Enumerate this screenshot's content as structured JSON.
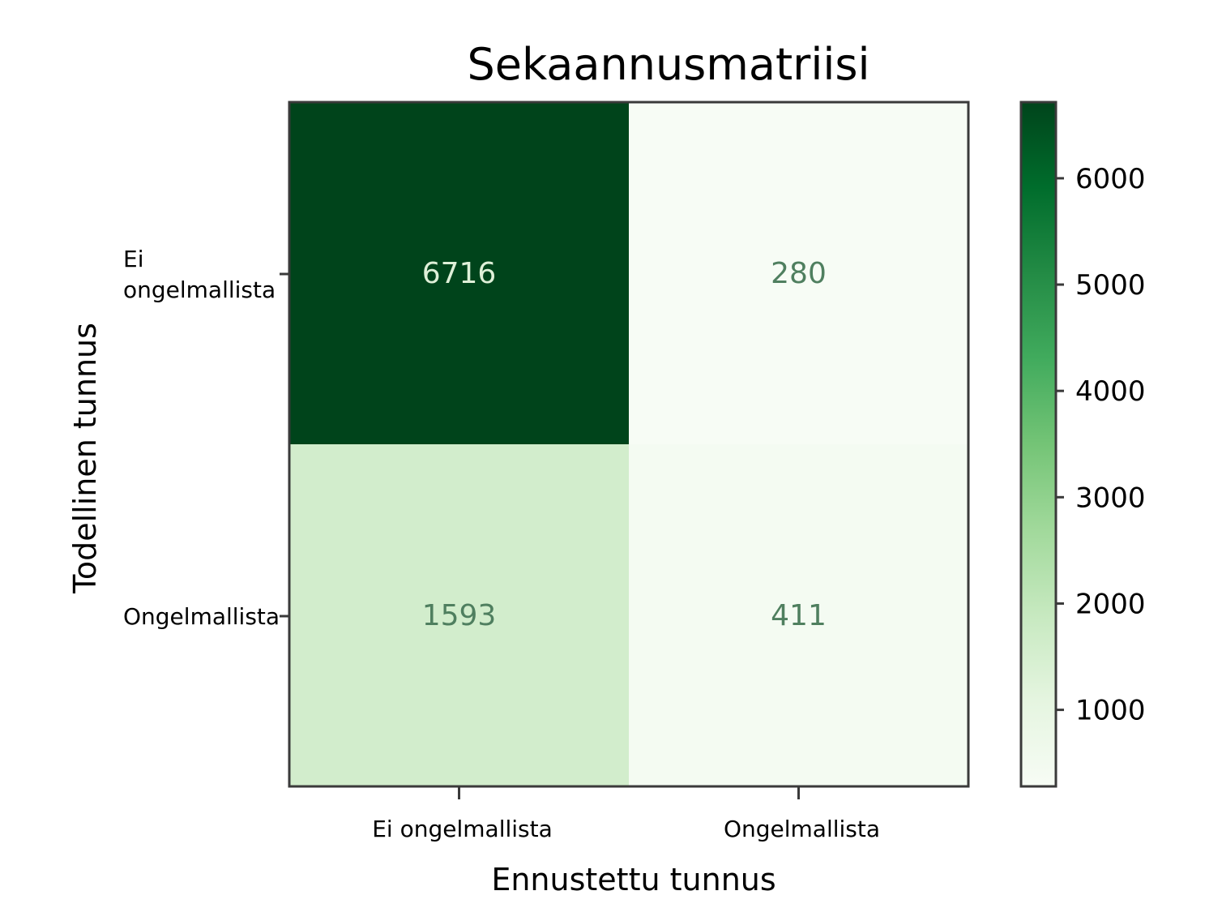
{
  "chart_data": {
    "type": "heatmap",
    "title": "Sekaannusmatriisi",
    "xlabel": "Ennustettu tunnus",
    "ylabel": "Todellinen tunnus",
    "x_categories": [
      "Ei ongelmallista",
      "Ongelmallista"
    ],
    "y_categories": [
      [
        "Ei",
        "ongelmallista"
      ],
      [
        "Ongelmallista"
      ]
    ],
    "values": [
      [
        6716,
        280
      ],
      [
        1593,
        411
      ]
    ],
    "colorbar": {
      "range": [
        280,
        6716
      ],
      "ticks": [
        1000,
        2000,
        3000,
        4000,
        5000,
        6000
      ],
      "colors": [
        "#f7fcf5",
        "#e5f5e0",
        "#c7e9c0",
        "#a1d99b",
        "#74c476",
        "#41ab5d",
        "#238b45",
        "#006d2c",
        "#00441b"
      ]
    },
    "grid": false
  }
}
